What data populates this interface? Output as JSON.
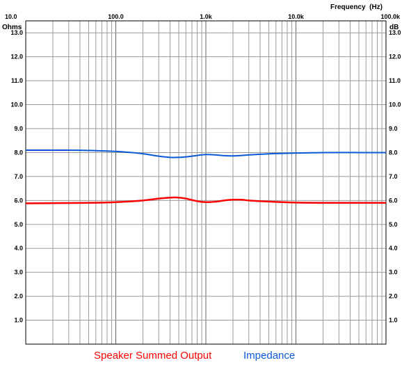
{
  "chart_data": {
    "type": "line",
    "xlabel": "Frequency  (Hz)",
    "ylabel_left": "Ohms",
    "ylabel_right": "dB",
    "x_scale": "log",
    "xlim": [
      10,
      100000
    ],
    "ylim": [
      0,
      13.5
    ],
    "grid": true,
    "legend_placement": "bottom",
    "x_tick_labels": [
      {
        "value": 10,
        "label": "10.0"
      },
      {
        "value": 100,
        "label": "100.0"
      },
      {
        "value": 1000,
        "label": "1.0k"
      },
      {
        "value": 10000,
        "label": "10.0k"
      },
      {
        "value": 100000,
        "label": "100.0k"
      }
    ],
    "y_ticks": [
      1,
      2,
      3,
      4,
      5,
      6,
      7,
      8,
      9,
      10,
      11,
      12,
      13
    ],
    "y_tick_labels": [
      "1.0",
      "2.0",
      "3.0",
      "4.0",
      "5.0",
      "6.0",
      "7.0",
      "8.0",
      "9.0",
      "10.0",
      "11.0",
      "12.0",
      "13.0"
    ],
    "series": [
      {
        "name": "Speaker Summed Output",
        "color": "#ff0000",
        "x": [
          10,
          50,
          100,
          200,
          300,
          400,
          500,
          600,
          800,
          1000,
          1300,
          1600,
          2000,
          2500,
          3000,
          4000,
          6000,
          10000,
          20000,
          50000,
          100000
        ],
        "y": [
          5.88,
          5.9,
          5.93,
          6.0,
          6.08,
          6.12,
          6.12,
          6.08,
          5.97,
          5.93,
          5.95,
          6.0,
          6.03,
          6.03,
          6.0,
          5.97,
          5.94,
          5.91,
          5.9,
          5.9,
          5.9
        ]
      },
      {
        "name": "Impedance",
        "color": "#0a58d8",
        "x": [
          10,
          30,
          60,
          100,
          150,
          200,
          300,
          400,
          500,
          600,
          800,
          1000,
          1300,
          1600,
          2000,
          2500,
          3000,
          4000,
          6000,
          10000,
          20000,
          50000,
          100000
        ],
        "y": [
          8.1,
          8.1,
          8.08,
          8.05,
          8.0,
          7.95,
          7.85,
          7.8,
          7.8,
          7.82,
          7.88,
          7.92,
          7.9,
          7.87,
          7.86,
          7.88,
          7.9,
          7.93,
          7.96,
          7.98,
          8.0,
          8.0,
          8.0
        ]
      }
    ]
  }
}
